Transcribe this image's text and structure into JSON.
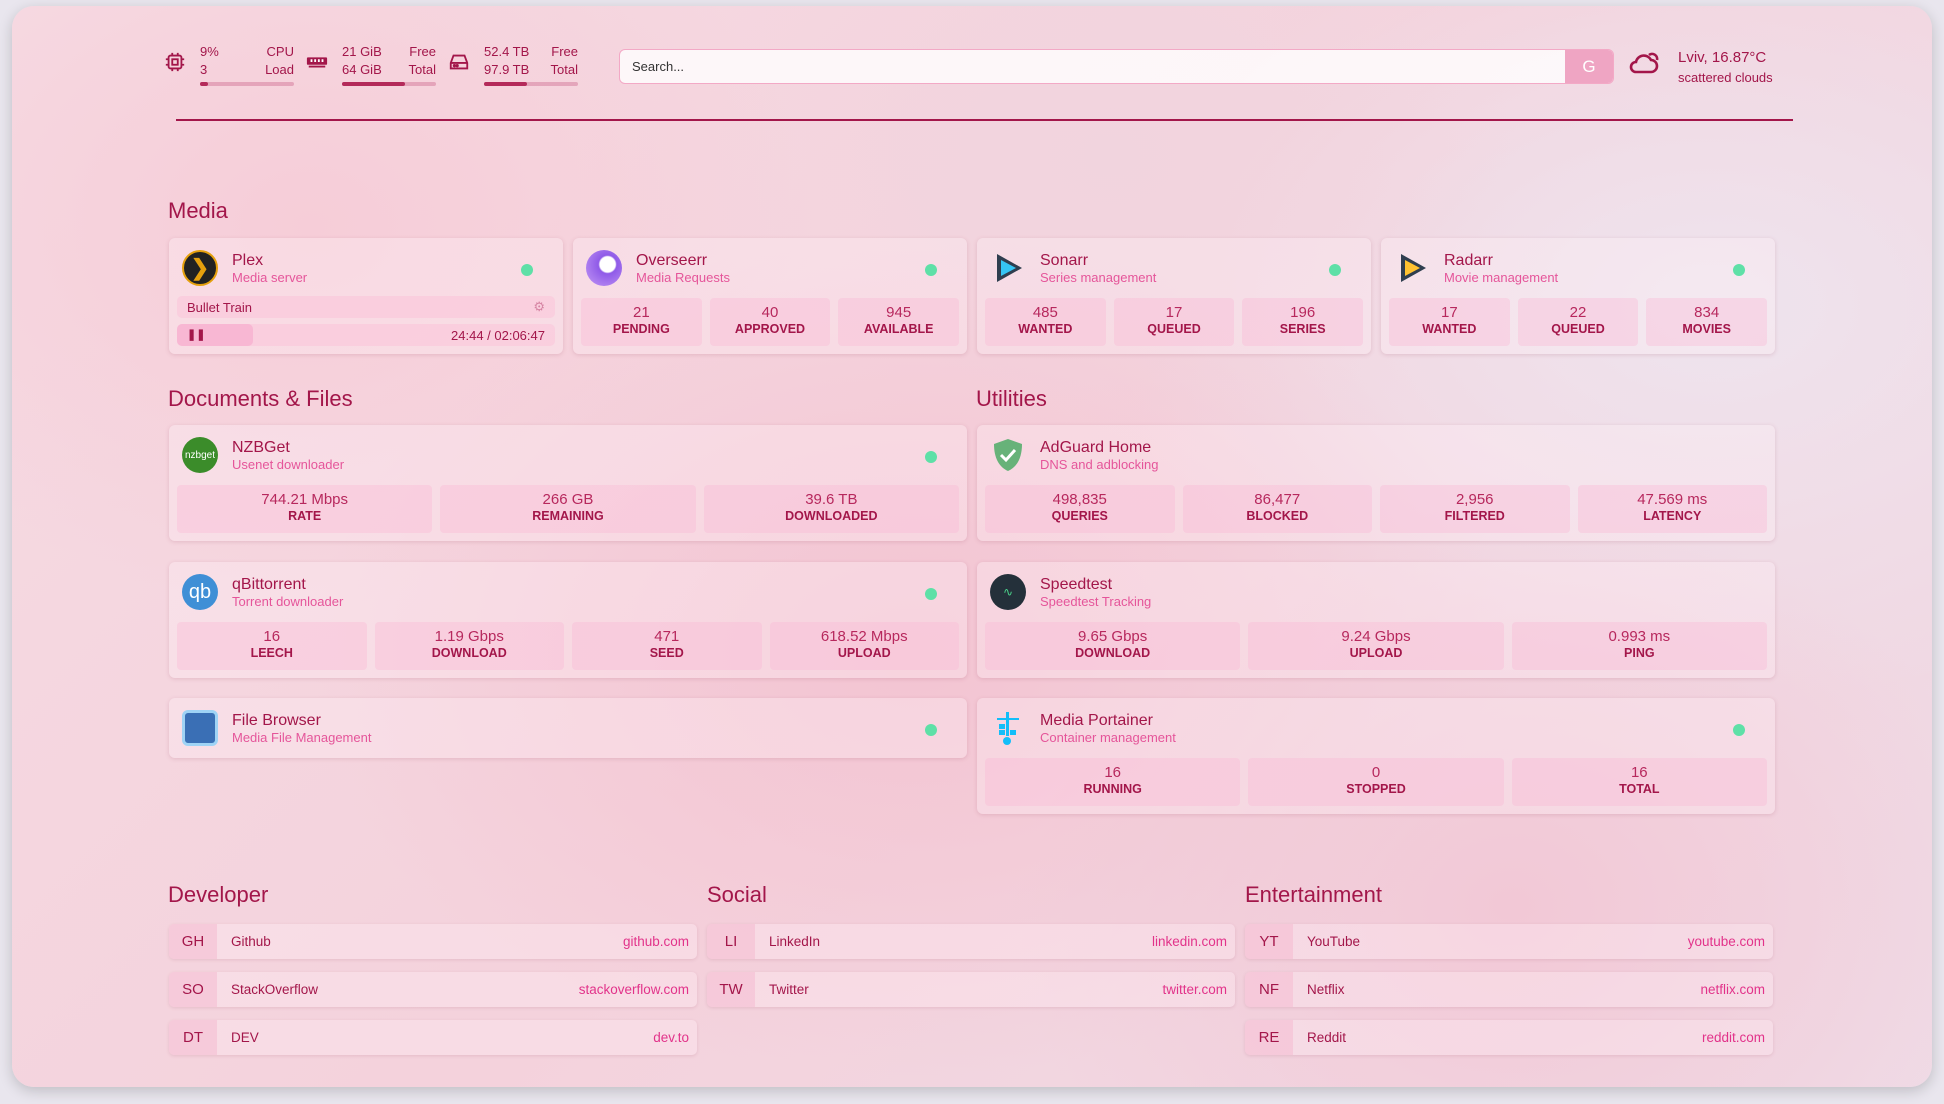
{
  "header": {
    "cpu": {
      "value": "9%",
      "label1": "CPU",
      "sub": "3",
      "label2": "Load",
      "percent": 9
    },
    "memory": {
      "value": "21 GiB",
      "label1": "Free",
      "sub": "64 GiB",
      "label2": "Total",
      "percent": 67
    },
    "disk": {
      "value": "52.4 TB",
      "label1": "Free",
      "sub": "97.9 TB",
      "label2": "Total",
      "percent": 46
    },
    "search": {
      "placeholder": "Search...",
      "button": "G"
    },
    "weather": {
      "location": "Lviv, 16.87°C",
      "condition": "scattered clouds",
      "icon": "cloud-sun-icon"
    }
  },
  "colors": {
    "text": "#a3164a",
    "accent": "#e5559a",
    "status": "#5ee0a7"
  },
  "sections": {
    "media": "Media",
    "docs": "Documents & Files",
    "utilities": "Utilities",
    "developer": "Developer",
    "social": "Social",
    "entertainment": "Entertainment"
  },
  "services": [
    {
      "id": "plex",
      "name": "Plex",
      "desc": "Media server",
      "icon": "plex-icon",
      "now_playing": {
        "title": "Bullet Train",
        "time": "24:44 / 02:06:47"
      }
    },
    {
      "id": "overseerr",
      "name": "Overseerr",
      "desc": "Media Requests",
      "icon": "overseerr-icon",
      "stats": [
        {
          "v": "21",
          "l": "PENDING"
        },
        {
          "v": "40",
          "l": "APPROVED"
        },
        {
          "v": "945",
          "l": "AVAILABLE"
        }
      ]
    },
    {
      "id": "sonarr",
      "name": "Sonarr",
      "desc": "Series management",
      "icon": "sonarr-icon",
      "stats": [
        {
          "v": "485",
          "l": "WANTED"
        },
        {
          "v": "17",
          "l": "QUEUED"
        },
        {
          "v": "196",
          "l": "SERIES"
        }
      ]
    },
    {
      "id": "radarr",
      "name": "Radarr",
      "desc": "Movie management",
      "icon": "radarr-icon",
      "stats": [
        {
          "v": "17",
          "l": "WANTED"
        },
        {
          "v": "22",
          "l": "QUEUED"
        },
        {
          "v": "834",
          "l": "MOVIES"
        }
      ]
    },
    {
      "id": "nzbget",
      "name": "NZBGet",
      "desc": "Usenet downloader",
      "icon": "nzbget-icon",
      "stats": [
        {
          "v": "744.21 Mbps",
          "l": "RATE"
        },
        {
          "v": "266 GB",
          "l": "REMAINING"
        },
        {
          "v": "39.6 TB",
          "l": "DOWNLOADED"
        }
      ]
    },
    {
      "id": "qbit",
      "name": "qBittorrent",
      "desc": "Torrent downloader",
      "icon": "qbittorrent-icon",
      "stats": [
        {
          "v": "16",
          "l": "LEECH"
        },
        {
          "v": "1.19 Gbps",
          "l": "DOWNLOAD"
        },
        {
          "v": "471",
          "l": "SEED"
        },
        {
          "v": "618.52 Mbps",
          "l": "UPLOAD"
        }
      ]
    },
    {
      "id": "filebrowser",
      "name": "File Browser",
      "desc": "Media File Management",
      "icon": "file-browser-icon"
    },
    {
      "id": "adguard",
      "name": "AdGuard Home",
      "desc": "DNS and adblocking",
      "icon": "adguard-shield-icon",
      "nodot": true,
      "stats": [
        {
          "v": "498,835",
          "l": "QUERIES"
        },
        {
          "v": "86,477",
          "l": "BLOCKED"
        },
        {
          "v": "2,956",
          "l": "FILTERED"
        },
        {
          "v": "47.569 ms",
          "l": "LATENCY"
        }
      ]
    },
    {
      "id": "speedtest",
      "name": "Speedtest",
      "desc": "Speedtest Tracking",
      "icon": "speedtest-icon",
      "nodot": true,
      "stats": [
        {
          "v": "9.65 Gbps",
          "l": "DOWNLOAD"
        },
        {
          "v": "9.24 Gbps",
          "l": "UPLOAD"
        },
        {
          "v": "0.993 ms",
          "l": "PING"
        }
      ]
    },
    {
      "id": "portainer",
      "name": "Media Portainer",
      "desc": "Container management",
      "icon": "portainer-icon",
      "stats": [
        {
          "v": "16",
          "l": "RUNNING"
        },
        {
          "v": "0",
          "l": "STOPPED"
        },
        {
          "v": "16",
          "l": "TOTAL"
        }
      ]
    }
  ],
  "bookmarks": [
    [
      {
        "abbr": "GH",
        "name": "Github",
        "url": "github.com"
      },
      {
        "abbr": "SO",
        "name": "StackOverflow",
        "url": "stackoverflow.com"
      },
      {
        "abbr": "DT",
        "name": "DEV",
        "url": "dev.to"
      }
    ],
    [
      {
        "abbr": "LI",
        "name": "LinkedIn",
        "url": "linkedin.com"
      },
      {
        "abbr": "TW",
        "name": "Twitter",
        "url": "twitter.com"
      }
    ],
    [
      {
        "abbr": "YT",
        "name": "YouTube",
        "url": "youtube.com"
      },
      {
        "abbr": "NF",
        "name": "Netflix",
        "url": "netflix.com"
      },
      {
        "abbr": "RE",
        "name": "Reddit",
        "url": "reddit.com"
      }
    ]
  ]
}
